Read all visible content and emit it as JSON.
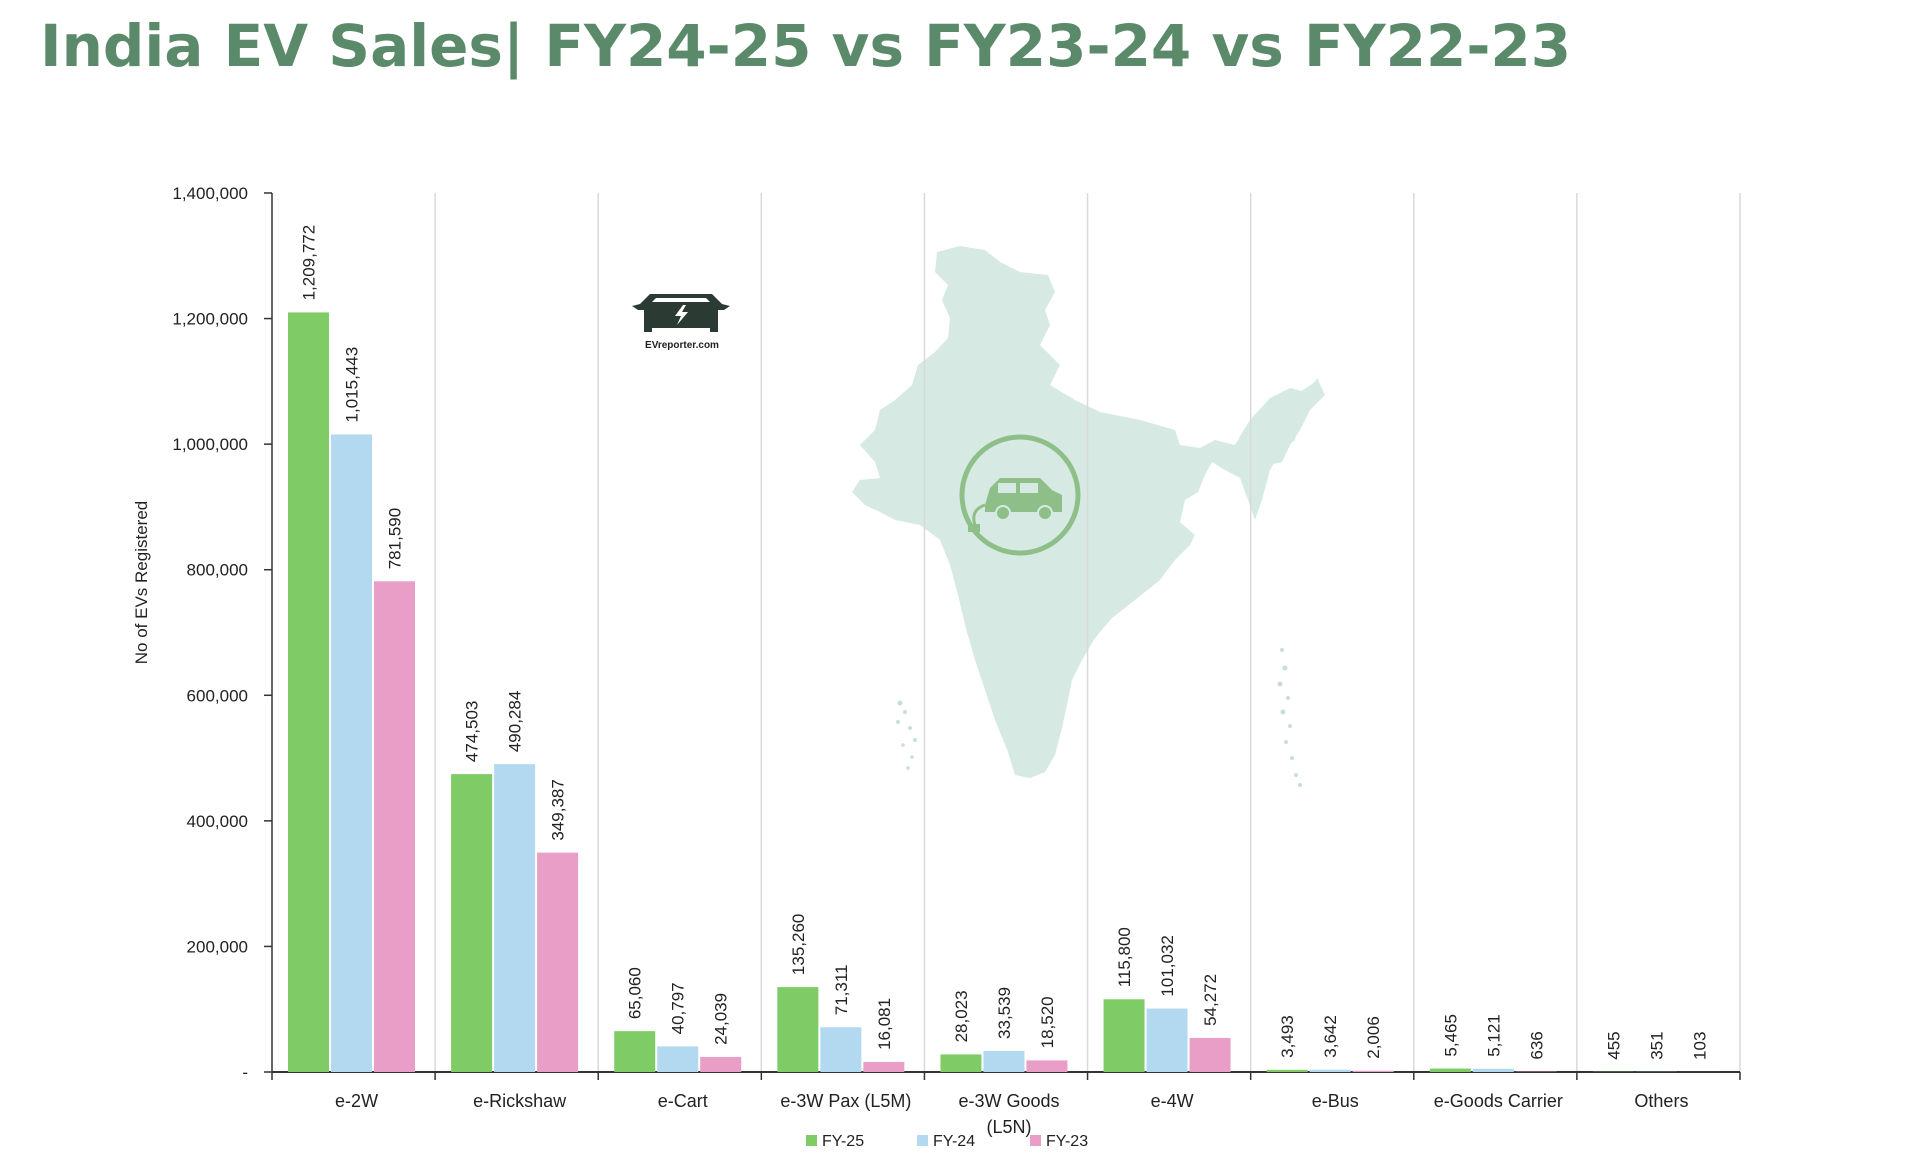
{
  "title": "India EV Sales| FY24-25 vs FY23-24 vs FY22-23",
  "logo_text": "EVreporter.com",
  "colors": {
    "title": "#5b8a6a",
    "FY-25": "#7fcc66",
    "FY-24": "#b2d9f0",
    "FY-23": "#e89ec6",
    "map": "#d6eae3",
    "map_icon": "#8fbf88"
  },
  "chart_data": {
    "type": "bar",
    "ylabel": "No of EVs Registered",
    "ylim": [
      0,
      1400000
    ],
    "yticks": [
      {
        "value": 0,
        "label": "-"
      },
      {
        "value": 200000,
        "label": "200,000"
      },
      {
        "value": 400000,
        "label": "400,000"
      },
      {
        "value": 600000,
        "label": "600,000"
      },
      {
        "value": 800000,
        "label": "800,000"
      },
      {
        "value": 1000000,
        "label": "1,000,000"
      },
      {
        "value": 1200000,
        "label": "1,200,000"
      },
      {
        "value": 1400000,
        "label": "1,400,000"
      }
    ],
    "categories": [
      [
        "e-2W"
      ],
      [
        "e-Rickshaw"
      ],
      [
        "e-Cart"
      ],
      [
        "e-3W Pax (L5M)"
      ],
      [
        "e-3W Goods",
        "(L5N)"
      ],
      [
        "e-4W"
      ],
      [
        "e-Bus"
      ],
      [
        "e-Goods Carrier"
      ],
      [
        "Others"
      ]
    ],
    "series": [
      {
        "name": "FY-25",
        "values": [
          1209772,
          474503,
          65060,
          135260,
          28023,
          115800,
          3493,
          5465,
          455
        ],
        "labels": [
          "1,209,772",
          "474,503",
          "65,060",
          "135,260",
          "28,023",
          "115,800",
          "3,493",
          "5,465",
          "455"
        ]
      },
      {
        "name": "FY-24",
        "values": [
          1015443,
          490284,
          40797,
          71311,
          33539,
          101032,
          3642,
          5121,
          351
        ],
        "labels": [
          "1,015,443",
          "490,284",
          "40,797",
          "71,311",
          "33,539",
          "101,032",
          "3,642",
          "5,121",
          "351"
        ]
      },
      {
        "name": "FY-23",
        "values": [
          781590,
          349387,
          24039,
          16081,
          18520,
          54272,
          2006,
          636,
          103
        ],
        "labels": [
          "781,590",
          "349,387",
          "24,039",
          "16,081",
          "18,520",
          "54,272",
          "2,006",
          "636",
          "103"
        ]
      }
    ],
    "grid": "vertical-category-separators",
    "legend_position": "bottom-center"
  }
}
